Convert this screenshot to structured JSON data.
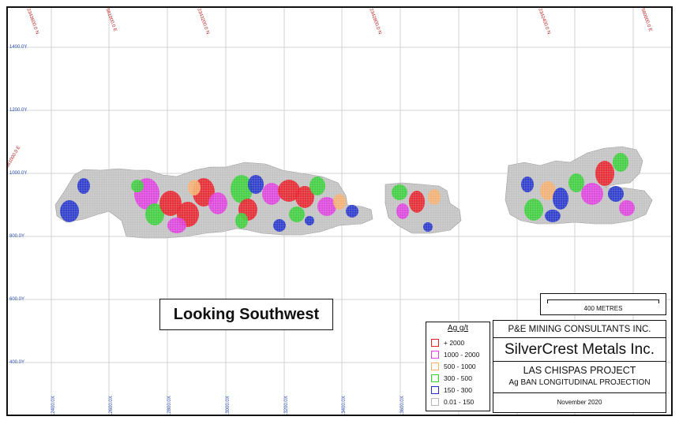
{
  "map": {
    "y_labels": [
      "1400.0Y",
      "1200.0Y",
      "1000.0Y",
      "800.0Y",
      "600.0Y",
      "400.0Y"
    ],
    "x_labels": [
      "12400.0X",
      "12600.0X",
      "12800.0X",
      "13000.0X",
      "13200.0X",
      "13400.0X",
      "13600.0X"
    ],
    "top_coordinates": [
      "2343600.0 N",
      "581000.0 E",
      "2343200.0 N",
      "2342800.0 N",
      "2342400.0 N",
      "580000.0 E"
    ],
    "left_coordinate": "581000.0 E"
  },
  "view_label": "Looking Southwest",
  "scale_bar": {
    "label": "400 METRES"
  },
  "legend": {
    "title": "Ag g/t",
    "items": [
      {
        "label": "+ 2000",
        "color": "#e8202a"
      },
      {
        "label": "1000 - 2000",
        "color": "#e040e0"
      },
      {
        "label": "500 - 1000",
        "color": "#f5b070"
      },
      {
        "label": "300 - 500",
        "color": "#3ad03a"
      },
      {
        "label": "150 - 300",
        "color": "#2233cc"
      },
      {
        "label": "0.01 - 150",
        "color": "#b8b8b8"
      }
    ]
  },
  "title_block": {
    "consultants": "P&E MINING CONSULTANTS INC.",
    "company": "SilverCrest Metals Inc.",
    "project": "LAS CHISPAS PROJECT",
    "projection": "Ag BAN LONGITUDINAL PROJECTION",
    "date": "November 2020"
  },
  "colors": {
    "grid": "#c8c8c8",
    "low": "#c4c4c4",
    "blue": "#2233cc",
    "green": "#3ad03a",
    "orange": "#f5b070",
    "magenta": "#e040e0",
    "red": "#e8202a"
  }
}
